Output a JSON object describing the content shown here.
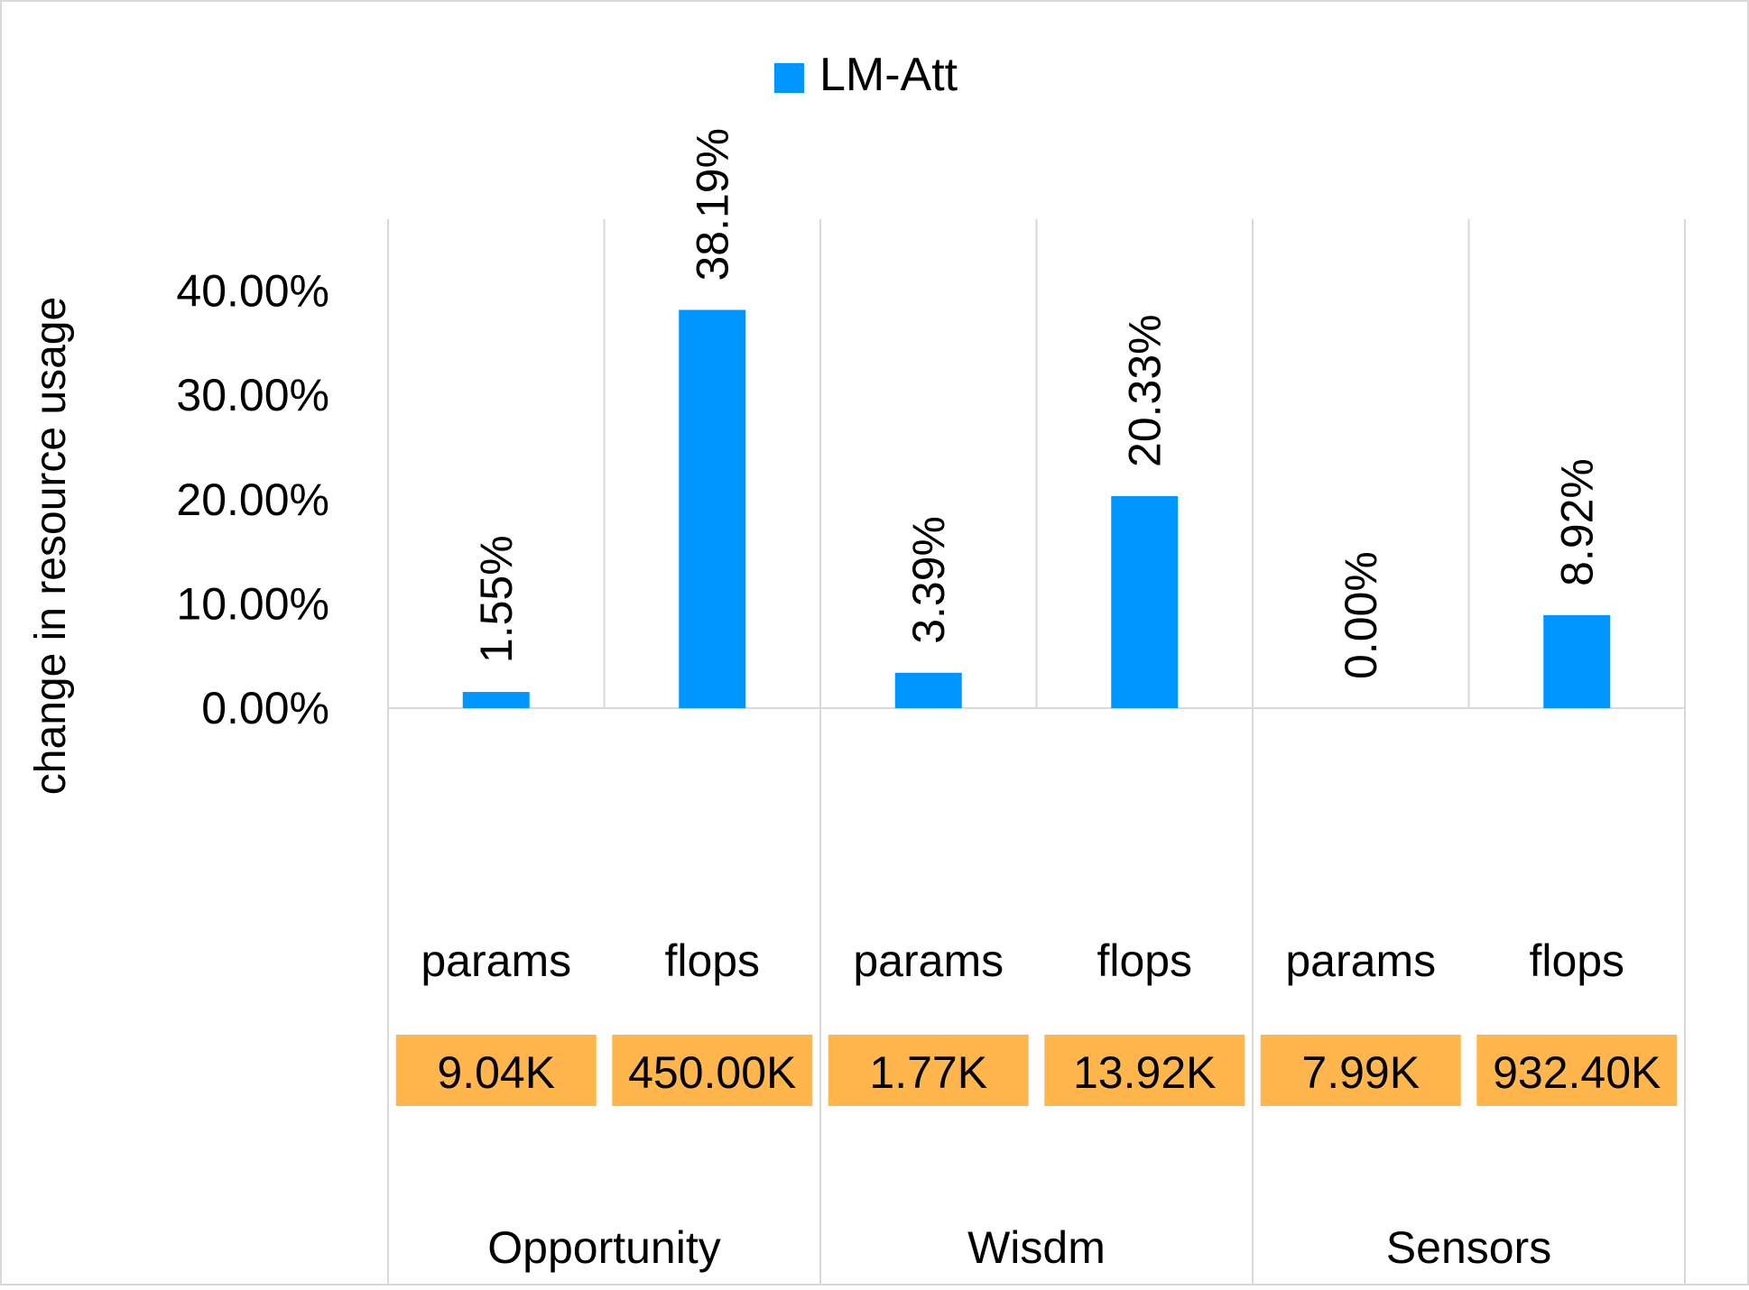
{
  "chart_data": {
    "type": "bar",
    "ylabel": "change in resource usage",
    "ylim": [
      0,
      40
    ],
    "yticks": [
      "0.00%",
      "10.00%",
      "20.00%",
      "30.00%",
      "40.00%"
    ],
    "legend": {
      "position": "top-center",
      "entries": [
        "LM-Att"
      ]
    },
    "grid": "vertical category separators",
    "series": [
      {
        "name": "LM-Att",
        "color": "#0096FF",
        "values": [
          1.55,
          38.19,
          3.39,
          20.33,
          0.0,
          8.92
        ],
        "labels": [
          "1.55%",
          "38.19%",
          "3.39%",
          "20.33%",
          "0.00%",
          "8.92%"
        ]
      }
    ],
    "categories": [
      "params",
      "flops",
      "params",
      "flops",
      "params",
      "flops"
    ],
    "base_values": [
      "9.04K",
      "450.00K",
      "1.77K",
      "13.92K",
      "7.99K",
      "932.40K"
    ],
    "base_value_color": "#FFB74D",
    "groups": [
      "Opportunity",
      "Wisdm",
      "Sensors"
    ]
  }
}
